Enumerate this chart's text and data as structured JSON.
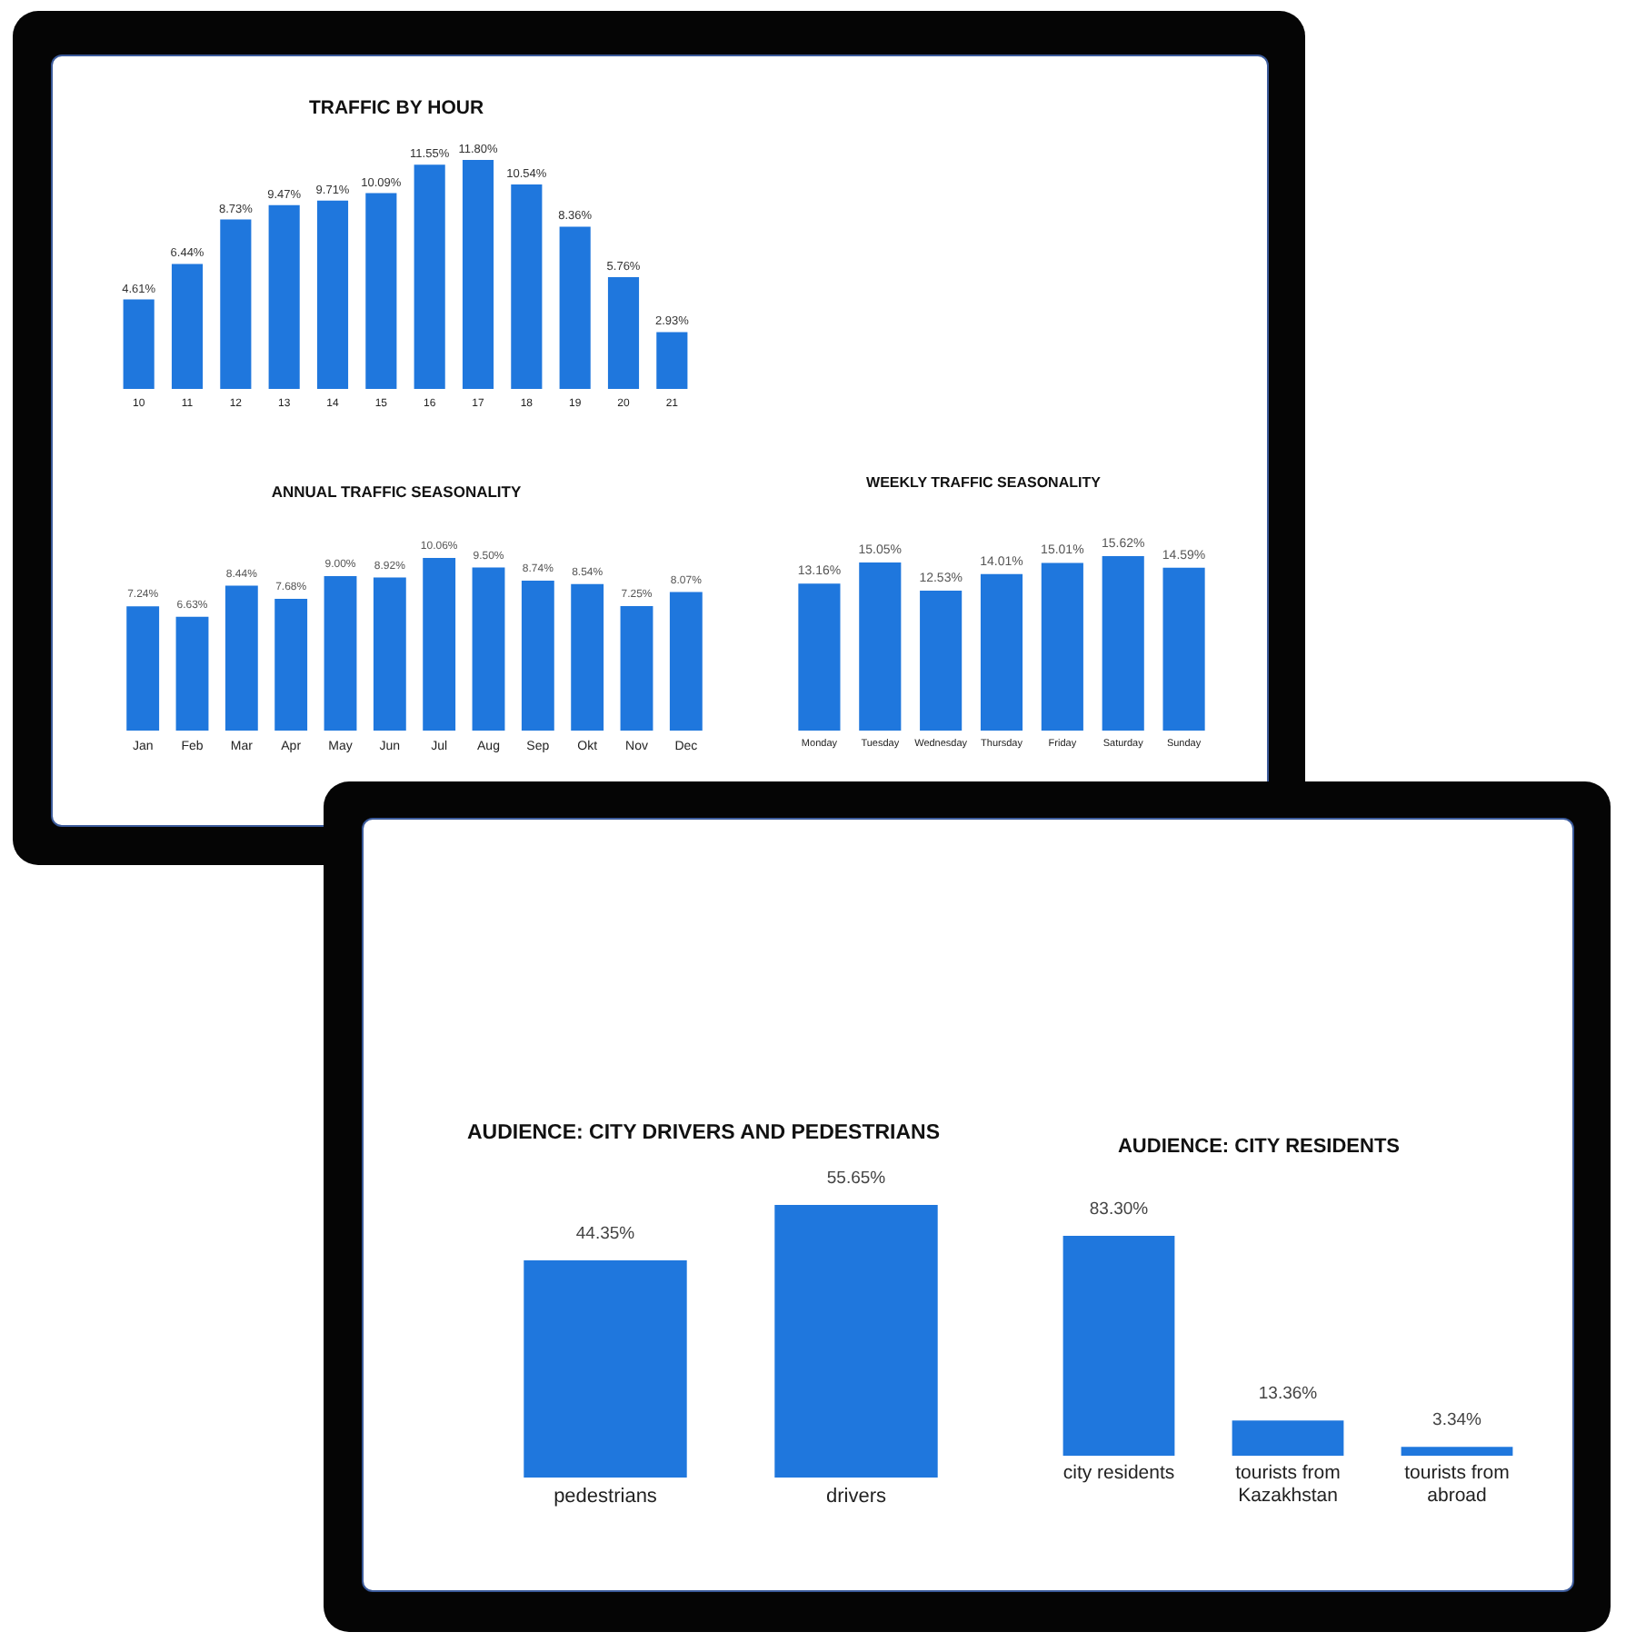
{
  "chart_data": [
    {
      "type": "bar",
      "title": "TRAFFIC BY HOUR",
      "categories": [
        "10",
        "11",
        "12",
        "13",
        "14",
        "15",
        "16",
        "17",
        "18",
        "19",
        "20",
        "21"
      ],
      "values": [
        4.61,
        6.44,
        8.73,
        9.47,
        9.71,
        10.09,
        11.55,
        11.8,
        10.54,
        8.36,
        5.76,
        2.93
      ],
      "value_labels": [
        "4.61%",
        "6.44%",
        "8.73%",
        "9.47%",
        "9.71%",
        "10.09%",
        "11.55%",
        "11.80%",
        "10.54%",
        "8.36%",
        "5.76%",
        "2.93%"
      ],
      "color": "#1f77dd"
    },
    {
      "type": "bar",
      "title": "ANNUAL TRAFFIC SEASONALITY",
      "categories": [
        "Jan",
        "Feb",
        "Mar",
        "Apr",
        "May",
        "Jun",
        "Jul",
        "Aug",
        "Sep",
        "Okt",
        "Nov",
        "Dec"
      ],
      "values": [
        7.24,
        6.63,
        8.44,
        7.68,
        9.0,
        8.92,
        10.06,
        9.5,
        8.74,
        8.54,
        7.25,
        8.07
      ],
      "value_labels": [
        "7.24%",
        "6.63%",
        "8.44%",
        "7.68%",
        "9.00%",
        "8.92%",
        "10.06%",
        "9.50%",
        "8.74%",
        "8.54%",
        "7.25%",
        "8.07%"
      ],
      "color": "#1f77dd"
    },
    {
      "type": "bar",
      "title": "WEEKLY TRAFFIC SEASONALITY",
      "categories": [
        "Monday",
        "Tuesday",
        "Wednesday",
        "Thursday",
        "Friday",
        "Saturday",
        "Sunday"
      ],
      "values": [
        13.16,
        15.05,
        12.53,
        14.01,
        15.01,
        15.62,
        14.59
      ],
      "value_labels": [
        "13.16%",
        "15.05%",
        "12.53%",
        "14.01%",
        "15.01%",
        "15.62%",
        "14.59%"
      ],
      "color": "#1f77dd"
    },
    {
      "type": "bar",
      "title": "AUDIENCE: CITY DRIVERS AND PEDESTRIANS",
      "categories": [
        "pedestrians",
        "drivers"
      ],
      "values": [
        44.35,
        55.65
      ],
      "value_labels": [
        "44.35%",
        "55.65%"
      ],
      "color": "#1f77dd"
    },
    {
      "type": "bar",
      "title": "AUDIENCE: CITY RESIDENTS",
      "categories": [
        "city residents",
        "tourists from Kazakhstan",
        "tourists from abroad"
      ],
      "values": [
        83.3,
        13.36,
        3.34
      ],
      "value_labels": [
        "83.30%",
        "13.36%",
        "3.34%"
      ],
      "color": "#1f77dd"
    }
  ]
}
